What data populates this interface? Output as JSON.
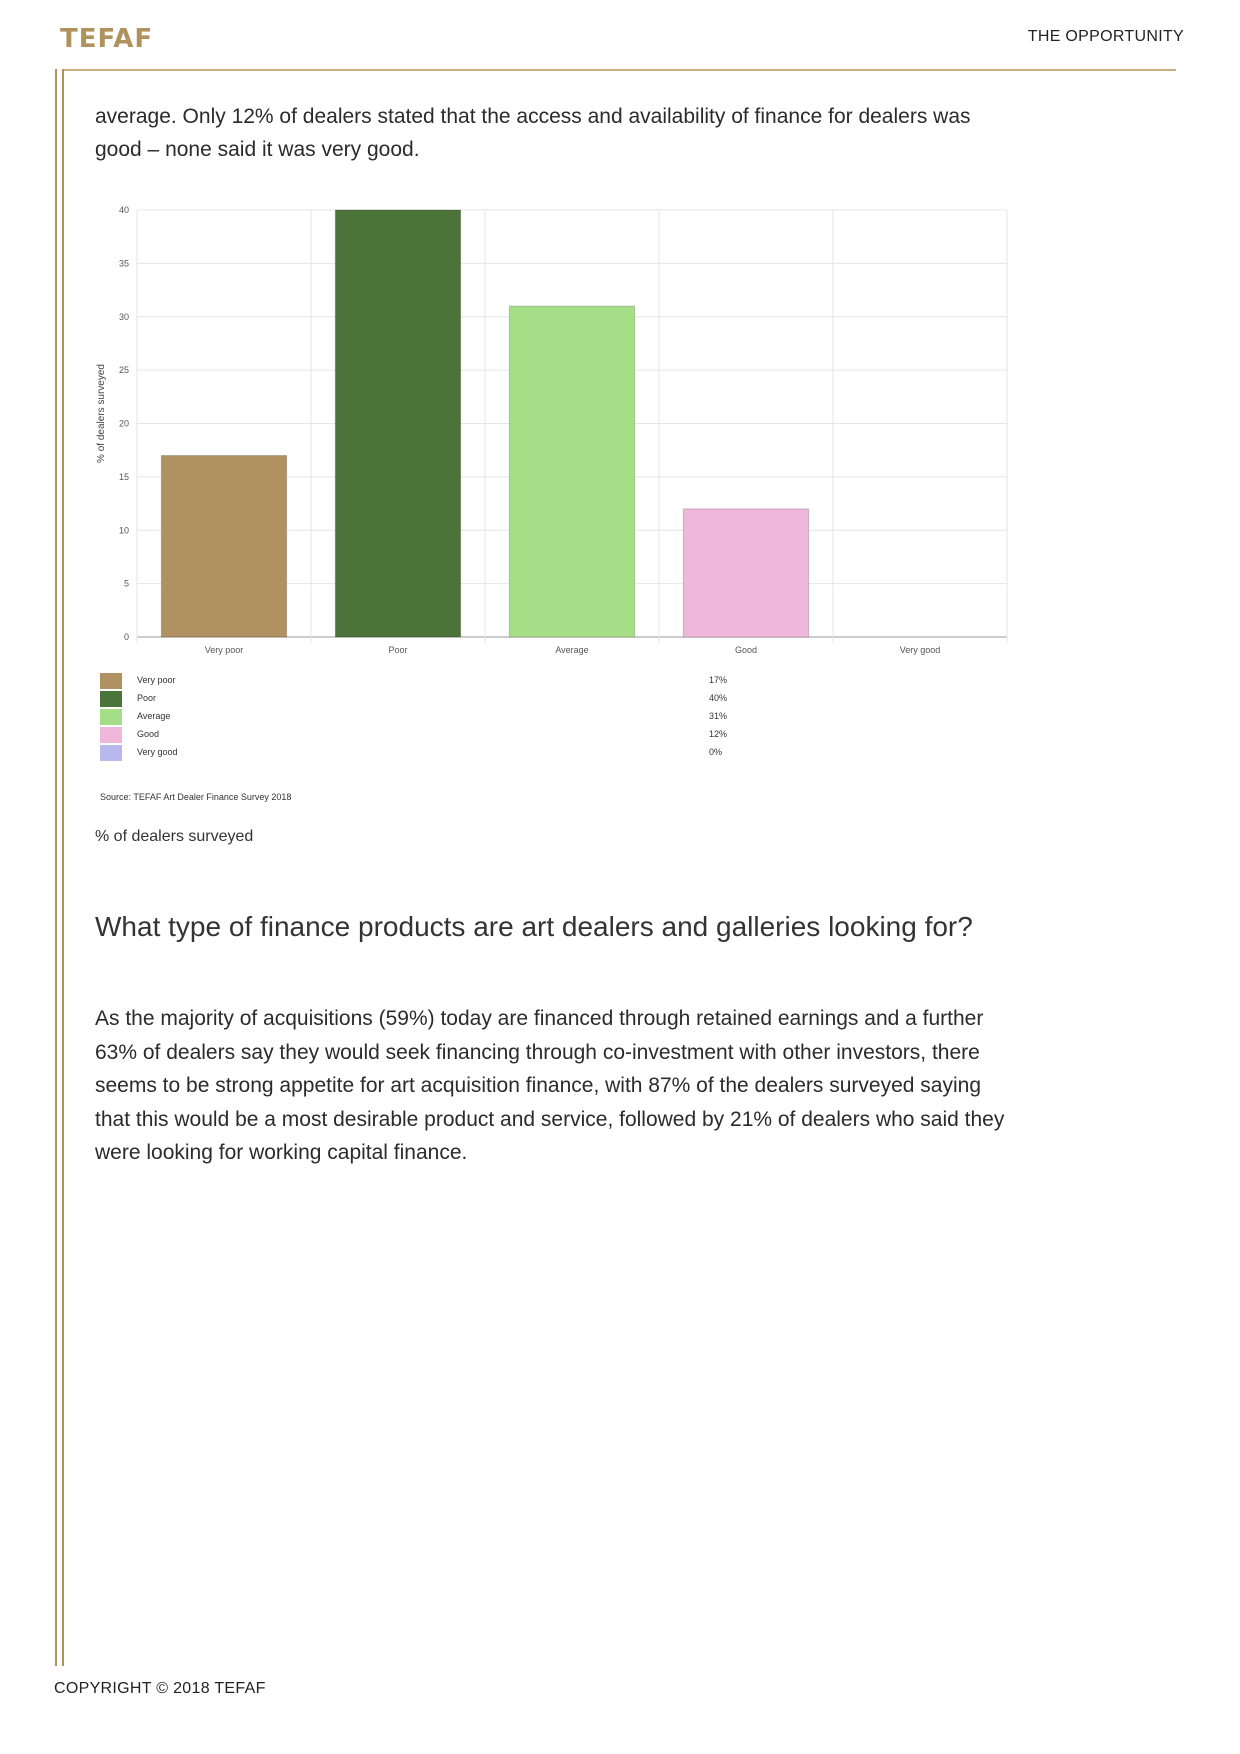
{
  "header": {
    "logo_text": "TEFAF",
    "section_label": "THE OPPORTUNITY"
  },
  "lead_paragraph": "average. Only 12% of dealers stated that the access and availability of finance for dealers was good – none said it was very good.",
  "chart_data": {
    "type": "bar",
    "categories": [
      "Very poor",
      "Poor",
      "Average",
      "Good",
      "Very good"
    ],
    "values": [
      17,
      40,
      31,
      12,
      0
    ],
    "colors": [
      "#b09262",
      "#4c7339",
      "#a6de87",
      "#efb8da",
      "#b8b8ee"
    ],
    "ylabel": "% of dealers surveyed",
    "xlabel": "",
    "ylim": [
      0,
      40
    ],
    "yticks": [
      0,
      5,
      10,
      15,
      20,
      25,
      30,
      35,
      40
    ],
    "grid": true,
    "legend": {
      "placement": "bottom",
      "items": [
        {
          "label": "Very poor",
          "value": "17%"
        },
        {
          "label": "Poor",
          "value": "40%"
        },
        {
          "label": "Average",
          "value": "31%"
        },
        {
          "label": "Good",
          "value": "12%"
        },
        {
          "label": "Very good",
          "value": "0%"
        }
      ]
    },
    "source": "Source: TEFAF Art Dealer Finance Survey 2018"
  },
  "chart_caption": "% of dealers surveyed",
  "section_heading": "What type of finance products are art dealers and galleries looking for?",
  "body_paragraph": "As the majority of acquisitions (59%) today are financed through retained earnings and a further 63% of dealers say they would seek financing through co-investment with other investors, there seems to be strong appetite for art acquisition finance, with 87% of the dealers surveyed saying that this would be a most desirable product and service, followed by 21% of dealers who said they were looking for working capital finance.",
  "footer": {
    "copyright": "COPYRIGHT © 2018 TEFAF"
  }
}
